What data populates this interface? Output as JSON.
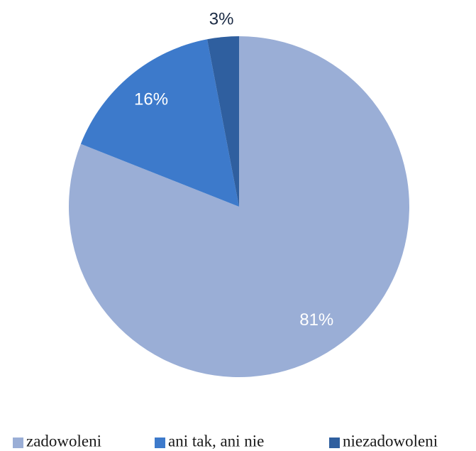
{
  "chart_data": {
    "type": "pie",
    "categories": [
      "zadowoleni",
      "ani tak, ani nie",
      "niezadowoleni"
    ],
    "values": [
      81,
      16,
      3
    ],
    "value_labels": [
      "81%",
      "16%",
      "3%"
    ],
    "colors": [
      "#9aaed6",
      "#3d7acb",
      "#2f5f9f"
    ],
    "legend": "bottom"
  }
}
